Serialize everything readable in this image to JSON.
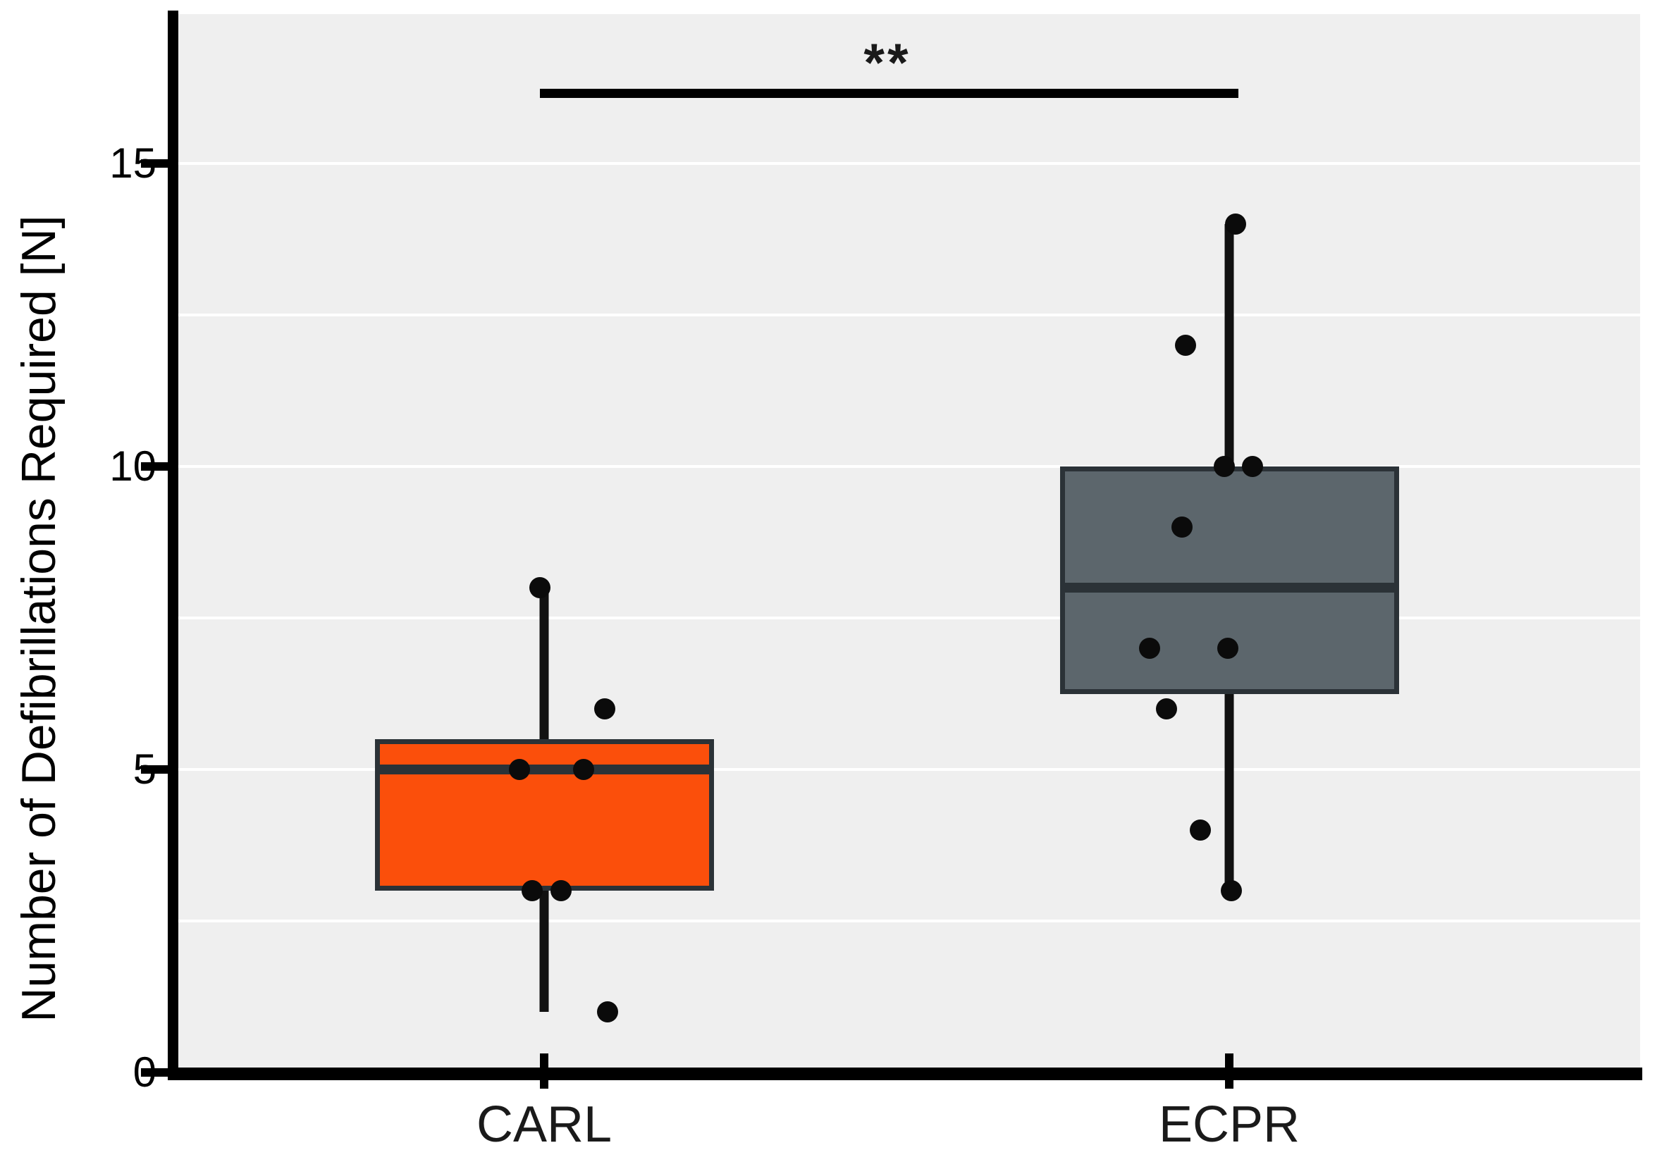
{
  "chart_data": {
    "type": "box",
    "title": "",
    "xlabel": "",
    "ylabel": "Number of Defibrillations Required [N]",
    "ylim": [
      0,
      17.4
    ],
    "yticks": [
      0,
      5,
      10,
      15
    ],
    "gridlines": [
      2.5,
      5,
      7.5,
      10,
      12.5,
      15
    ],
    "legend_position": "none",
    "panel_background": "#efefef",
    "categories": [
      "CARL",
      "ECPR"
    ],
    "series": [
      {
        "name": "CARL",
        "box_color": "#fb4f0b",
        "values": [
          8,
          6,
          5,
          5,
          3,
          3,
          1
        ],
        "stats": {
          "median": 5,
          "q1": 3,
          "q3": 5.5,
          "whisker_low": 1,
          "whisker_high": 8
        }
      },
      {
        "name": "ECPR",
        "box_color": "#5c666c",
        "values": [
          14,
          12,
          10,
          10,
          9,
          7,
          7,
          6,
          4,
          3
        ],
        "stats": {
          "median": 8,
          "q1": 6.25,
          "q3": 10,
          "whisker_low": 3,
          "whisker_high": 14
        }
      }
    ],
    "annotation": {
      "text": "**",
      "between": [
        "CARL",
        "ECPR"
      ]
    }
  }
}
